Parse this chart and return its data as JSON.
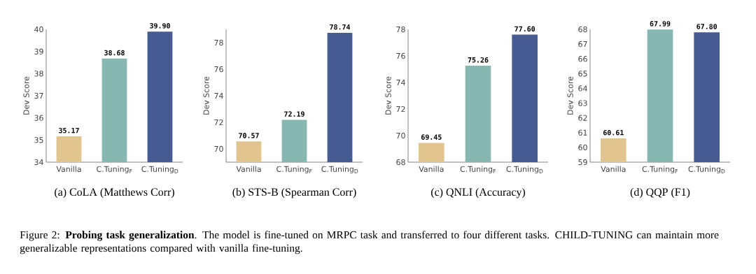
{
  "chart_data": [
    {
      "type": "bar",
      "xlabel": "(a)  CoLA (Matthews Corr)",
      "ylabel": "Dev Score",
      "categories": [
        "Vanilla",
        "C.Tuning$_{F}$",
        "C.Tuning$_{D}$"
      ],
      "values": [
        35.17,
        38.68,
        39.9
      ],
      "value_labels": [
        "35.17",
        "38.68",
        "39.90"
      ],
      "colors": [
        "#e2c48e",
        "#86b8b1",
        "#465b92"
      ],
      "ylim": [
        34,
        40
      ],
      "yticks": [
        34,
        35,
        36,
        37,
        38,
        39,
        40
      ],
      "annotations": [
        "Figure 2: **Probing task generalization**. The model is fine-tuned on MRPC task and transferred to four different tasks. CHILD-TUNING can maintain more generalizable representations compared with vanilla fine-tuning."
      ]
    },
    {
      "type": "bar",
      "xlabel": "(b)  STS-B (Spearman Corr)",
      "ylabel": "Dev Score",
      "categories": [
        "Vanilla",
        "C.Tuning$_{F}$",
        "C.Tuning$_{D}$"
      ],
      "values": [
        70.57,
        72.19,
        78.74
      ],
      "value_labels": [
        "70.57",
        "72.19",
        "78.74"
      ],
      "colors": [
        "#e2c48e",
        "#86b8b1",
        "#465b92"
      ],
      "ylim": [
        69,
        79
      ],
      "yticks": [
        70,
        72,
        74,
        76,
        78
      ]
    },
    {
      "type": "bar",
      "xlabel": "(c)  QNLI (Accuracy)",
      "ylabel": "Dev Score",
      "categories": [
        "Vanilla",
        "C.Tuning$_{F}$",
        "C.Tuning$_{D}$"
      ],
      "values": [
        69.45,
        75.26,
        77.6
      ],
      "value_labels": [
        "69.45",
        "75.26",
        "77.60"
      ],
      "colors": [
        "#e2c48e",
        "#86b8b1",
        "#465b92"
      ],
      "ylim": [
        68,
        78
      ],
      "yticks": [
        68,
        70,
        72,
        74,
        76,
        78
      ]
    },
    {
      "type": "bar",
      "xlabel": "(d)  QQP (F1)",
      "ylabel": "Dev Score",
      "categories": [
        "Vanilla",
        "C.Tuning$_{F}$",
        "C.Tuning$_{D}$"
      ],
      "values": [
        60.61,
        67.99,
        67.8
      ],
      "value_labels": [
        "60.61",
        "67.99",
        "67.80"
      ],
      "colors": [
        "#e2c48e",
        "#86b8b1",
        "#465b92"
      ],
      "ylim": [
        59,
        68
      ],
      "yticks": [
        59,
        60,
        61,
        62,
        63,
        64,
        65,
        66,
        67,
        68
      ]
    }
  ]
}
